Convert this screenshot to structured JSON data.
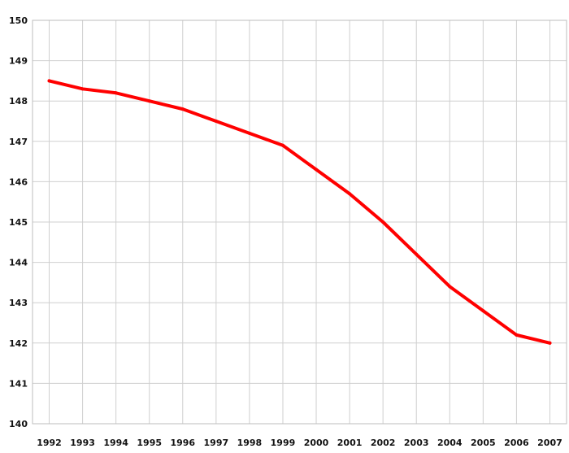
{
  "chart_data": {
    "type": "line",
    "title": "",
    "xlabel": "",
    "ylabel": "",
    "x": [
      "1992",
      "1993",
      "1994",
      "1995",
      "1996",
      "1997",
      "1998",
      "1999",
      "2000",
      "2001",
      "2002",
      "2003",
      "2004",
      "2005",
      "2006",
      "2007"
    ],
    "series": [
      {
        "color": "#ff0000",
        "values": [
          148.5,
          148.3,
          148.2,
          148.0,
          147.8,
          147.5,
          147.2,
          146.9,
          146.3,
          145.7,
          145.0,
          144.2,
          143.4,
          142.8,
          142.2,
          142.0
        ]
      }
    ],
    "ylim": [
      140,
      150
    ],
    "yticks": [
      140,
      141,
      142,
      143,
      144,
      145,
      146,
      147,
      148,
      149,
      150
    ],
    "grid": true,
    "legend": "none"
  }
}
